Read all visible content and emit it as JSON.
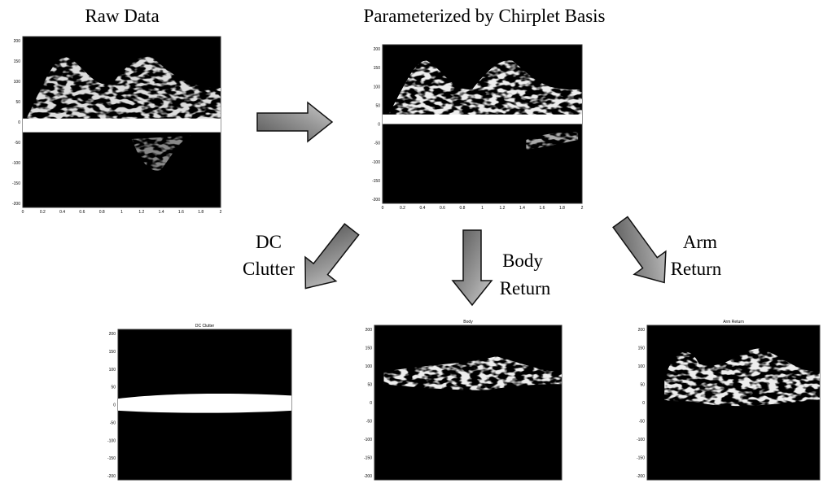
{
  "labels": {
    "raw": "Raw Data",
    "param": "Parameterized by Chirplet Basis",
    "dc_1": "DC",
    "dc_2": "Clutter",
    "body_1": "Body",
    "body_2": "Return",
    "arm_1": "Arm",
    "arm_2": "Return"
  },
  "panels": [
    {
      "yticks": [
        "200",
        "150",
        "100",
        "50",
        "0",
        "-50",
        "-100",
        "-150",
        "-200"
      ],
      "xticks": [
        "0",
        "0.2",
        "0.4",
        "0.6",
        "0.8",
        "1",
        "1.2",
        "1.4",
        "1.6",
        "1.8",
        "2"
      ]
    },
    {
      "yticks": [
        "200",
        "150",
        "100",
        "50",
        "0",
        "-50",
        "-100",
        "-150",
        "-200"
      ],
      "xticks": [
        "0",
        "0.2",
        "0.4",
        "0.6",
        "0.8",
        "1",
        "1.2",
        "1.4",
        "1.6",
        "1.8",
        "2"
      ]
    },
    {
      "title": "DC Clutter",
      "yticks": [
        "200",
        "150",
        "100",
        "50",
        "0",
        "-50",
        "-100",
        "-150",
        "-200"
      ]
    },
    {
      "title": "Body",
      "yticks": [
        "200",
        "150",
        "100",
        "50",
        "0",
        "-50",
        "-100",
        "-150",
        "-200"
      ]
    },
    {
      "title": "Arm Return",
      "yticks": [
        "200",
        "150",
        "100",
        "50",
        "0",
        "-50",
        "-100",
        "-150",
        "-200"
      ]
    }
  ]
}
